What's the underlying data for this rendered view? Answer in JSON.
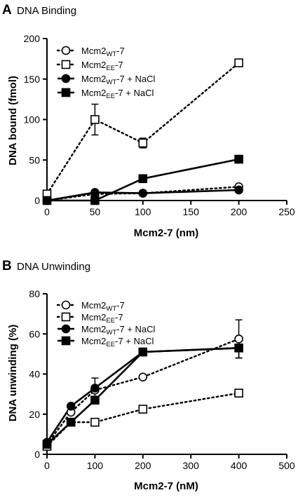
{
  "chart_data": [
    {
      "type": "line",
      "panel": "A",
      "title": "DNA Binding",
      "xlabel": "Mcm2-7 (nm)",
      "ylabel": "DNA bound (fmol)",
      "xlim": [
        0,
        250
      ],
      "ylim": [
        0,
        200
      ],
      "xticks": [
        "0",
        "50",
        "100",
        "150",
        "200",
        "250"
      ],
      "yticks": [
        "0",
        "50",
        "100",
        "150",
        "200"
      ],
      "legend_position": "top-left",
      "series": [
        {
          "name_main": "Mcm2",
          "name_sub": "WT",
          "name_suffix": "-7",
          "marker": "circle-open",
          "line": "dotted",
          "x": [
            0,
            50,
            100,
            200
          ],
          "y": [
            0,
            8,
            9,
            17
          ],
          "err": [
            0,
            0,
            0,
            0
          ]
        },
        {
          "name_main": "Mcm2",
          "name_sub": "EE",
          "name_suffix": "-7",
          "marker": "square-open",
          "line": "dotted",
          "x": [
            0,
            50,
            100,
            200
          ],
          "y": [
            8,
            100,
            71,
            170
          ],
          "err": [
            0,
            19,
            6,
            0
          ]
        },
        {
          "name_main": "Mcm2",
          "name_sub": "WT",
          "name_suffix": "-7 + NaCl",
          "marker": "circle-filled",
          "line": "solid",
          "x": [
            0,
            50,
            100,
            200
          ],
          "y": [
            0,
            10,
            9,
            13
          ],
          "err": [
            0,
            0,
            0,
            0
          ]
        },
        {
          "name_main": "Mcm2",
          "name_sub": "EE",
          "name_suffix": "-7 + NaCl",
          "marker": "square-filled",
          "line": "solid",
          "x": [
            0,
            50,
            100,
            200
          ],
          "y": [
            0,
            0,
            27,
            51
          ],
          "err": [
            0,
            0,
            0,
            0
          ]
        }
      ]
    },
    {
      "type": "line",
      "panel": "B",
      "title": "DNA Unwinding",
      "xlabel": "Mcm2-7 (nM)",
      "ylabel": "DNA unwinding (%)",
      "xlim": [
        0,
        500
      ],
      "ylim": [
        0,
        80
      ],
      "xticks": [
        "0",
        "100",
        "200",
        "300",
        "400",
        "500"
      ],
      "yticks": [
        "0",
        "20",
        "40",
        "60",
        "80"
      ],
      "legend_position": "top-left",
      "series": [
        {
          "name_main": "Mcm2",
          "name_sub": "WT",
          "name_suffix": "-7",
          "marker": "circle-open",
          "line": "dotted",
          "x": [
            0,
            50,
            100,
            200,
            400
          ],
          "y": [
            5,
            21,
            32,
            38.5,
            57.5
          ],
          "err": [
            0,
            0,
            0,
            0,
            9.5
          ]
        },
        {
          "name_main": "Mcm2",
          "name_sub": "EE",
          "name_suffix": "-7",
          "marker": "square-open",
          "line": "dotted",
          "x": [
            0,
            50,
            100,
            200,
            400
          ],
          "y": [
            4,
            16,
            16,
            22.5,
            30.5
          ],
          "err": [
            0,
            0,
            0,
            0,
            0
          ]
        },
        {
          "name_main": "Mcm2",
          "name_sub": "WT",
          "name_suffix": "-7 + NaCl",
          "marker": "circle-filled",
          "line": "solid",
          "x": [
            0,
            50,
            100,
            200,
            400
          ],
          "y": [
            6,
            24,
            33,
            51,
            53
          ],
          "err": [
            0,
            0,
            5,
            0,
            5
          ]
        },
        {
          "name_main": "Mcm2",
          "name_sub": "EE",
          "name_suffix": "-7 + NaCl",
          "marker": "square-filled",
          "line": "solid",
          "x": [
            0,
            50,
            100,
            200,
            400
          ],
          "y": [
            5,
            16,
            27,
            51,
            53
          ],
          "err": [
            0,
            0,
            0,
            0,
            0
          ]
        }
      ]
    }
  ]
}
